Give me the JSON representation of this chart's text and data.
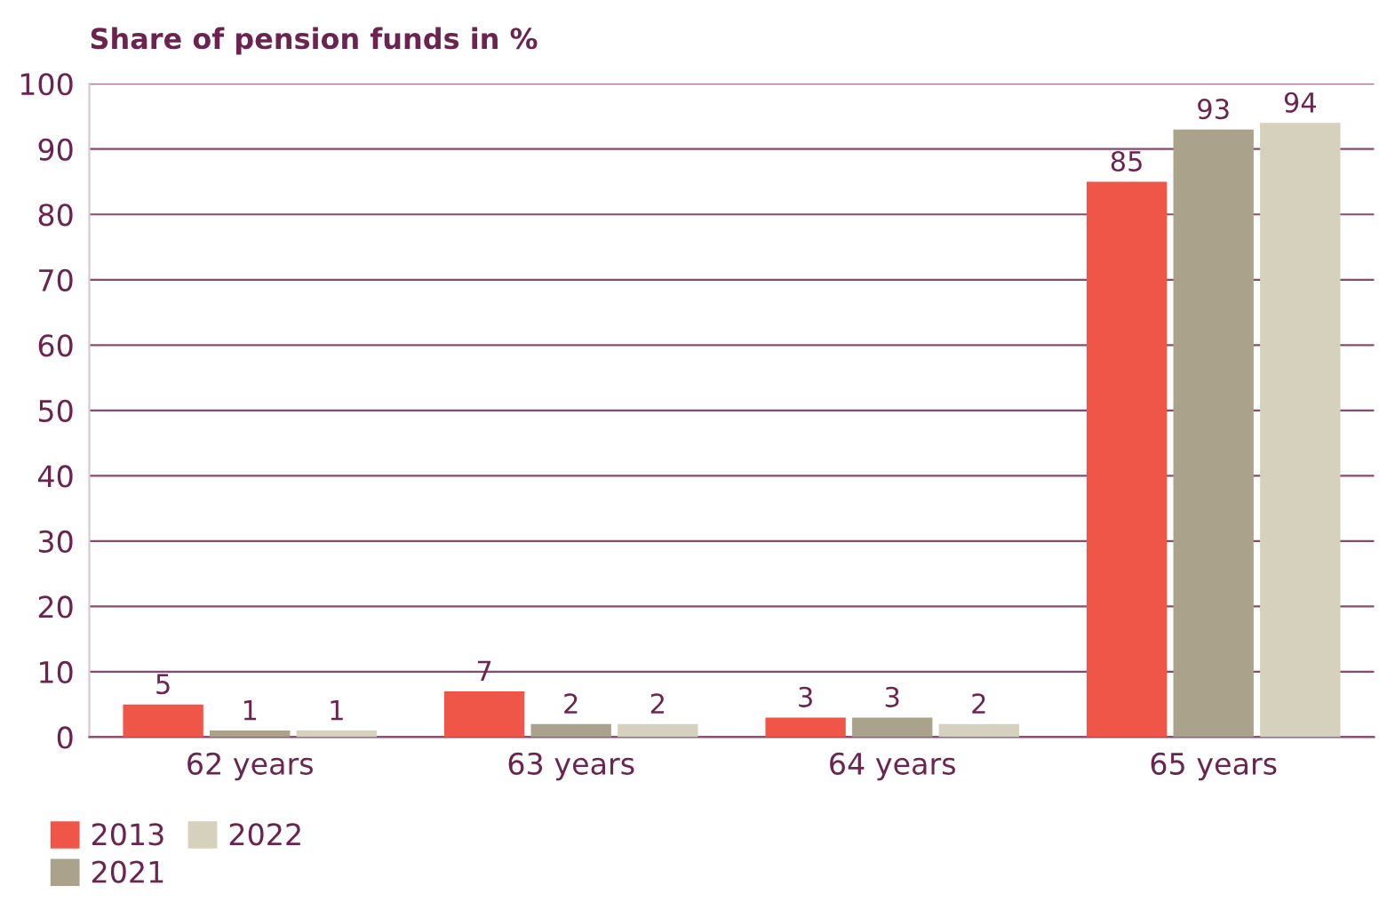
{
  "chart_data": {
    "type": "bar",
    "title": "Share of pension funds in %",
    "categories": [
      "62 years",
      "63 years",
      "64 years",
      "65 years"
    ],
    "series": [
      {
        "name": "2013",
        "color": "#ef5648",
        "values": [
          5,
          7,
          3,
          85
        ]
      },
      {
        "name": "2021",
        "color": "#aaa28b",
        "values": [
          1,
          2,
          3,
          93
        ]
      },
      {
        "name": "2022",
        "color": "#d5d1bd",
        "values": [
          1,
          2,
          2,
          94
        ]
      }
    ],
    "ylim": [
      0,
      100
    ],
    "yticks": [
      0,
      10,
      20,
      30,
      40,
      50,
      60,
      70,
      80,
      90,
      100
    ],
    "grid": "y",
    "legend": "bottom left",
    "data_labels": true
  }
}
